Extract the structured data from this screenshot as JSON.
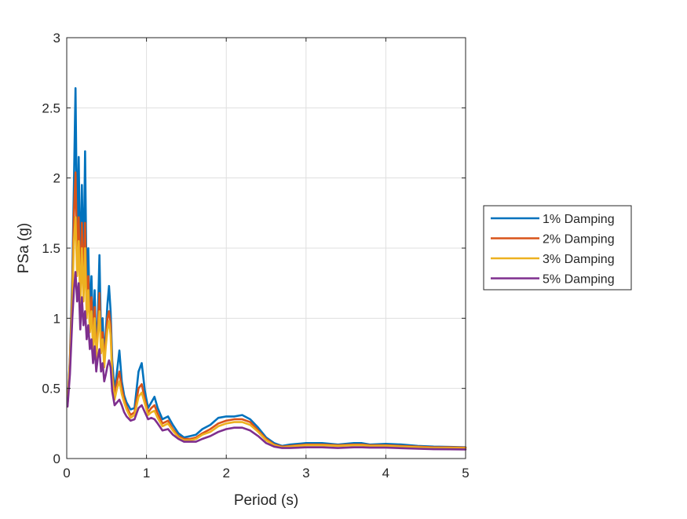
{
  "chart_data": {
    "type": "line",
    "title": "",
    "xlabel": "Period (s)",
    "ylabel": "PSa (g)",
    "xlim": [
      0,
      5
    ],
    "ylim": [
      0,
      3
    ],
    "xticks": [
      0,
      1,
      2,
      3,
      4,
      5
    ],
    "yticks": [
      0,
      0.5,
      1,
      1.5,
      2,
      2.5,
      3
    ],
    "xtick_labels": [
      "0",
      "1",
      "2",
      "3",
      "4",
      "5"
    ],
    "ytick_labels": [
      "0",
      "0.5",
      "1",
      "1.5",
      "2",
      "2.5",
      "3"
    ],
    "grid": true,
    "legend_position": "outside-right",
    "series": [
      {
        "name": "1% Damping",
        "color": "#0072BD",
        "x": [
          0.01,
          0.04,
          0.07,
          0.09,
          0.11,
          0.13,
          0.15,
          0.17,
          0.19,
          0.21,
          0.23,
          0.25,
          0.27,
          0.29,
          0.31,
          0.33,
          0.35,
          0.37,
          0.39,
          0.41,
          0.43,
          0.45,
          0.47,
          0.49,
          0.51,
          0.53,
          0.55,
          0.57,
          0.6,
          0.63,
          0.66,
          0.69,
          0.72,
          0.75,
          0.8,
          0.85,
          0.9,
          0.94,
          0.98,
          1.02,
          1.06,
          1.1,
          1.14,
          1.2,
          1.27,
          1.33,
          1.4,
          1.47,
          1.55,
          1.62,
          1.7,
          1.8,
          1.9,
          2.0,
          2.1,
          2.2,
          2.3,
          2.4,
          2.5,
          2.6,
          2.7,
          2.8,
          3.0,
          3.2,
          3.4,
          3.6,
          3.7,
          3.8,
          4.0,
          4.2,
          4.4,
          4.6,
          4.8,
          5.0
        ],
        "y": [
          0.38,
          0.72,
          1.3,
          1.95,
          2.64,
          1.55,
          2.15,
          1.25,
          1.95,
          1.3,
          2.19,
          1.15,
          1.5,
          1.0,
          1.3,
          0.88,
          1.2,
          0.78,
          1.0,
          1.45,
          0.85,
          1.0,
          0.72,
          0.9,
          1.1,
          1.23,
          1.05,
          0.7,
          0.48,
          0.62,
          0.77,
          0.55,
          0.45,
          0.4,
          0.35,
          0.36,
          0.62,
          0.68,
          0.48,
          0.36,
          0.4,
          0.44,
          0.36,
          0.28,
          0.3,
          0.24,
          0.18,
          0.15,
          0.16,
          0.17,
          0.21,
          0.24,
          0.29,
          0.3,
          0.3,
          0.31,
          0.28,
          0.22,
          0.15,
          0.11,
          0.09,
          0.1,
          0.11,
          0.11,
          0.1,
          0.11,
          0.11,
          0.1,
          0.105,
          0.1,
          0.09,
          0.085,
          0.083,
          0.08
        ]
      },
      {
        "name": "2% Damping",
        "color": "#D95319",
        "x": [
          0.01,
          0.04,
          0.07,
          0.09,
          0.11,
          0.13,
          0.15,
          0.17,
          0.19,
          0.21,
          0.23,
          0.25,
          0.27,
          0.29,
          0.31,
          0.33,
          0.35,
          0.37,
          0.39,
          0.41,
          0.43,
          0.45,
          0.47,
          0.49,
          0.51,
          0.53,
          0.55,
          0.57,
          0.6,
          0.63,
          0.66,
          0.69,
          0.72,
          0.75,
          0.8,
          0.85,
          0.9,
          0.94,
          0.98,
          1.02,
          1.06,
          1.1,
          1.14,
          1.2,
          1.27,
          1.33,
          1.4,
          1.47,
          1.55,
          1.62,
          1.7,
          1.8,
          1.9,
          2.0,
          2.1,
          2.2,
          2.3,
          2.4,
          2.5,
          2.6,
          2.7,
          2.8,
          3.0,
          3.2,
          3.4,
          3.6,
          3.7,
          3.8,
          4.0,
          4.2,
          4.4,
          4.6,
          4.8,
          5.0
        ],
        "y": [
          0.38,
          0.7,
          1.2,
          1.75,
          2.04,
          1.4,
          1.72,
          1.15,
          1.68,
          1.2,
          1.68,
          1.05,
          1.3,
          0.95,
          1.15,
          0.82,
          1.08,
          0.72,
          0.92,
          1.18,
          0.78,
          0.9,
          0.68,
          0.85,
          1.0,
          1.05,
          0.95,
          0.62,
          0.45,
          0.55,
          0.62,
          0.5,
          0.42,
          0.37,
          0.31,
          0.33,
          0.5,
          0.53,
          0.42,
          0.33,
          0.36,
          0.38,
          0.32,
          0.25,
          0.27,
          0.21,
          0.16,
          0.14,
          0.14,
          0.15,
          0.18,
          0.21,
          0.25,
          0.27,
          0.28,
          0.28,
          0.26,
          0.2,
          0.14,
          0.1,
          0.085,
          0.09,
          0.1,
          0.1,
          0.095,
          0.1,
          0.1,
          0.095,
          0.095,
          0.09,
          0.085,
          0.08,
          0.08,
          0.078
        ]
      },
      {
        "name": "3% Damping",
        "color": "#EDB120",
        "x": [
          0.01,
          0.04,
          0.07,
          0.09,
          0.11,
          0.13,
          0.15,
          0.17,
          0.19,
          0.21,
          0.23,
          0.25,
          0.27,
          0.29,
          0.31,
          0.33,
          0.35,
          0.37,
          0.39,
          0.41,
          0.43,
          0.45,
          0.47,
          0.49,
          0.51,
          0.53,
          0.55,
          0.57,
          0.6,
          0.63,
          0.66,
          0.69,
          0.72,
          0.75,
          0.8,
          0.85,
          0.9,
          0.94,
          0.98,
          1.02,
          1.06,
          1.1,
          1.14,
          1.2,
          1.27,
          1.33,
          1.4,
          1.47,
          1.55,
          1.62,
          1.7,
          1.8,
          1.9,
          2.0,
          2.1,
          2.2,
          2.3,
          2.4,
          2.5,
          2.6,
          2.7,
          2.8,
          3.0,
          3.2,
          3.4,
          3.6,
          3.7,
          3.8,
          4.0,
          4.2,
          4.4,
          4.6,
          4.8,
          5.0
        ],
        "y": [
          0.38,
          0.68,
          1.1,
          1.55,
          1.72,
          1.3,
          1.55,
          1.1,
          1.5,
          1.12,
          1.5,
          1.0,
          1.2,
          0.9,
          1.05,
          0.78,
          1.0,
          0.7,
          0.88,
          1.05,
          0.75,
          0.85,
          0.65,
          0.8,
          0.92,
          0.98,
          0.88,
          0.58,
          0.42,
          0.5,
          0.55,
          0.46,
          0.4,
          0.35,
          0.29,
          0.31,
          0.44,
          0.47,
          0.39,
          0.31,
          0.33,
          0.34,
          0.29,
          0.23,
          0.25,
          0.2,
          0.15,
          0.13,
          0.13,
          0.14,
          0.17,
          0.19,
          0.23,
          0.25,
          0.26,
          0.26,
          0.24,
          0.19,
          0.13,
          0.095,
          0.08,
          0.085,
          0.095,
          0.095,
          0.09,
          0.095,
          0.095,
          0.09,
          0.09,
          0.085,
          0.08,
          0.075,
          0.075,
          0.073
        ]
      },
      {
        "name": "5% Damping",
        "color": "#7E2F8E",
        "x": [
          0.01,
          0.04,
          0.07,
          0.09,
          0.11,
          0.13,
          0.15,
          0.17,
          0.19,
          0.21,
          0.23,
          0.25,
          0.27,
          0.29,
          0.31,
          0.33,
          0.35,
          0.37,
          0.39,
          0.41,
          0.43,
          0.45,
          0.47,
          0.49,
          0.51,
          0.53,
          0.55,
          0.57,
          0.6,
          0.63,
          0.66,
          0.69,
          0.72,
          0.75,
          0.8,
          0.85,
          0.9,
          0.94,
          0.98,
          1.02,
          1.06,
          1.1,
          1.14,
          1.2,
          1.27,
          1.33,
          1.4,
          1.47,
          1.55,
          1.62,
          1.7,
          1.8,
          1.9,
          2.0,
          2.1,
          2.2,
          2.3,
          2.4,
          2.5,
          2.6,
          2.7,
          2.8,
          3.0,
          3.2,
          3.4,
          3.6,
          3.7,
          3.8,
          4.0,
          4.2,
          4.4,
          4.6,
          4.8,
          5.0
        ],
        "y": [
          0.37,
          0.6,
          1.0,
          1.2,
          1.33,
          1.12,
          1.25,
          0.92,
          1.15,
          0.95,
          1.05,
          0.85,
          0.95,
          0.78,
          0.85,
          0.68,
          0.8,
          0.62,
          0.72,
          0.78,
          0.62,
          0.68,
          0.55,
          0.6,
          0.66,
          0.7,
          0.65,
          0.48,
          0.38,
          0.4,
          0.42,
          0.38,
          0.33,
          0.3,
          0.27,
          0.28,
          0.36,
          0.38,
          0.33,
          0.28,
          0.29,
          0.28,
          0.25,
          0.2,
          0.21,
          0.17,
          0.14,
          0.12,
          0.12,
          0.12,
          0.14,
          0.16,
          0.19,
          0.21,
          0.22,
          0.22,
          0.2,
          0.16,
          0.11,
          0.085,
          0.075,
          0.075,
          0.08,
          0.08,
          0.075,
          0.08,
          0.08,
          0.078,
          0.078,
          0.074,
          0.07,
          0.067,
          0.066,
          0.065
        ]
      }
    ]
  }
}
